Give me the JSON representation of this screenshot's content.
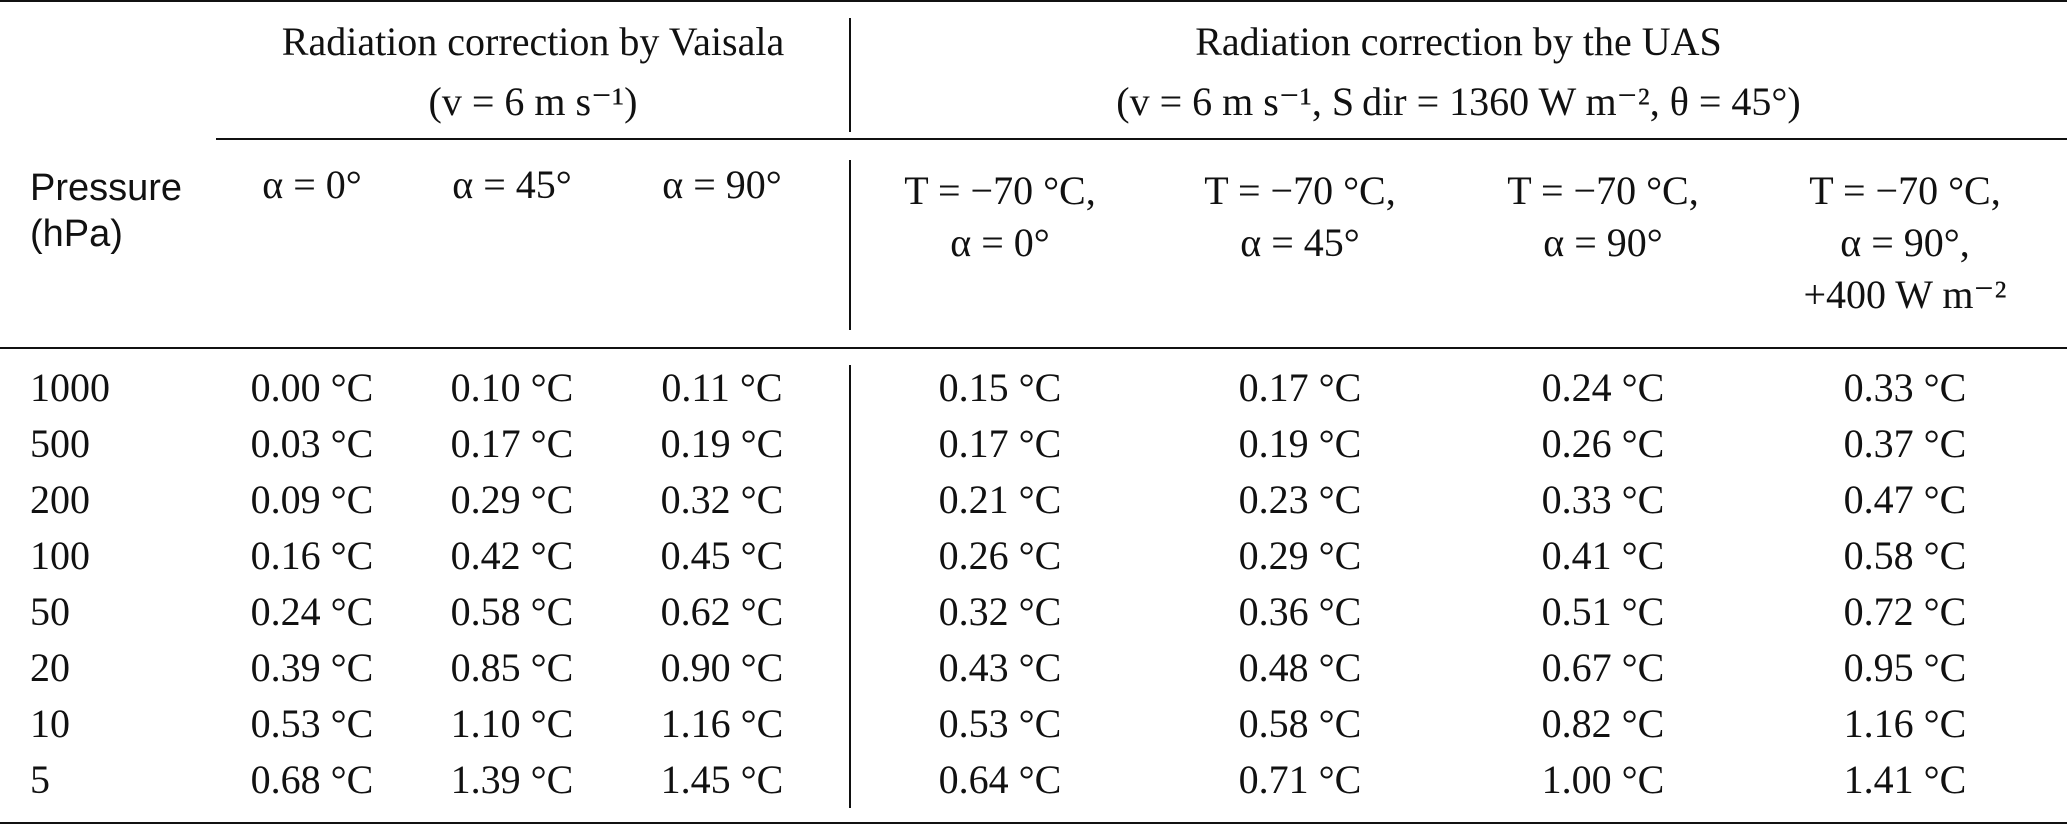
{
  "groups": {
    "vaisala": {
      "title": "Radiation correction by Vaisala",
      "subtitle": "(v = 6 m s⁻¹)"
    },
    "uas": {
      "title": "Radiation correction by the UAS",
      "subtitle": "(v = 6 m s⁻¹, S dir = 1360 W m⁻², θ =  45°)"
    }
  },
  "pressure_header": [
    "Pressure",
    "(hPa)"
  ],
  "column_headers": [
    [
      "α = 0°"
    ],
    [
      "α = 45°"
    ],
    [
      "α = 90°"
    ],
    [
      "T = −70 °C,",
      "α = 0°"
    ],
    [
      "T = −70 °C,",
      "α = 45°"
    ],
    [
      "T = −70 °C,",
      "α = 90°"
    ],
    [
      "T = −70 °C,",
      "α = 90°,",
      "+400 W m⁻²"
    ]
  ],
  "rows": [
    {
      "pressure": "1000",
      "values": [
        "0.00 °C",
        "0.10 °C",
        "0.11 °C",
        "0.15 °C",
        "0.17 °C",
        "0.24 °C",
        "0.33 °C"
      ]
    },
    {
      "pressure": "500",
      "values": [
        "0.03 °C",
        "0.17 °C",
        "0.19 °C",
        "0.17 °C",
        "0.19 °C",
        "0.26 °C",
        "0.37 °C"
      ]
    },
    {
      "pressure": "200",
      "values": [
        "0.09 °C",
        "0.29 °C",
        "0.32 °C",
        "0.21 °C",
        "0.23 °C",
        "0.33 °C",
        "0.47 °C"
      ]
    },
    {
      "pressure": "100",
      "values": [
        "0.16 °C",
        "0.42 °C",
        "0.45 °C",
        "0.26 °C",
        "0.29 °C",
        "0.41 °C",
        "0.58 °C"
      ]
    },
    {
      "pressure": "50",
      "values": [
        "0.24 °C",
        "0.58 °C",
        "0.62 °C",
        "0.32 °C",
        "0.36 °C",
        "0.51 °C",
        "0.72 °C"
      ]
    },
    {
      "pressure": "20",
      "values": [
        "0.39 °C",
        "0.85 °C",
        "0.90 °C",
        "0.43 °C",
        "0.48 °C",
        "0.67 °C",
        "0.95 °C"
      ]
    },
    {
      "pressure": "10",
      "values": [
        "0.53 °C",
        "1.10 °C",
        "1.16 °C",
        "0.53 °C",
        "0.58 °C",
        "0.82 °C",
        "1.16 °C"
      ]
    },
    {
      "pressure": "5",
      "values": [
        "0.68 °C",
        "1.39 °C",
        "1.45 °C",
        "0.64 °C",
        "0.71 °C",
        "1.00 °C",
        "1.41 °C"
      ]
    }
  ]
}
